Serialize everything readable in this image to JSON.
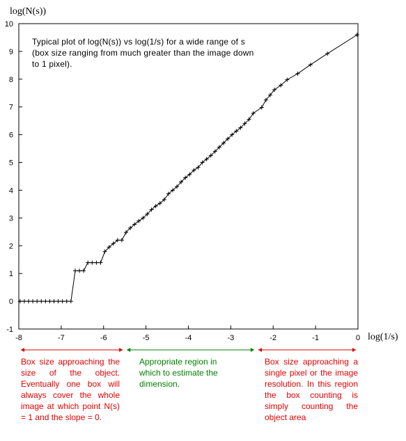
{
  "chart_data": {
    "type": "line",
    "title": "",
    "xlabel": "log(1/s)",
    "ylabel": "log(N(s))",
    "xlim": [
      -8,
      0
    ],
    "ylim": [
      -1,
      10
    ],
    "x_ticks": [
      "-8",
      "-7",
      "-6",
      "-5",
      "-4",
      "-3",
      "-2",
      "-1",
      "0"
    ],
    "y_ticks": [
      "-1",
      "0",
      "1",
      "2",
      "3",
      "4",
      "5",
      "6",
      "7",
      "8",
      "9",
      "10"
    ],
    "grid": false,
    "annotation": "Typical plot of log(N(s)) vs log(1/s) for a wide range of s (box size ranging from much greater than the image down to 1 pixel).",
    "series": [
      {
        "marker": "plus",
        "color": "#000000",
        "x": [
          -7.97,
          -7.87,
          -7.77,
          -7.67,
          -7.57,
          -7.47,
          -7.37,
          -7.27,
          -7.17,
          -7.07,
          -6.97,
          -6.87,
          -6.77,
          -6.67,
          -6.57,
          -6.47,
          -6.37,
          -6.27,
          -6.17,
          -6.07,
          -5.97,
          -5.87,
          -5.77,
          -5.67,
          -5.57,
          -5.47,
          -5.37,
          -5.27,
          -5.17,
          -5.07,
          -4.97,
          -4.87,
          -4.77,
          -4.67,
          -4.57,
          -4.47,
          -4.37,
          -4.27,
          -4.17,
          -4.07,
          -3.97,
          -3.87,
          -3.77,
          -3.67,
          -3.57,
          -3.47,
          -3.37,
          -3.27,
          -3.17,
          -3.07,
          -2.97,
          -2.87,
          -2.77,
          -2.67,
          -2.57,
          -2.47,
          -2.27,
          -2.17,
          -2.07,
          -1.97,
          -1.82,
          -1.67,
          -1.42,
          -1.12,
          -0.72,
          -0.02
        ],
        "y": [
          0,
          0,
          0,
          0,
          0,
          0,
          0,
          0,
          0,
          0,
          0,
          0,
          0,
          1.1,
          1.1,
          1.1,
          1.39,
          1.39,
          1.39,
          1.39,
          1.79,
          1.95,
          2.08,
          2.2,
          2.2,
          2.48,
          2.64,
          2.77,
          2.89,
          3.0,
          3.14,
          3.3,
          3.43,
          3.53,
          3.66,
          3.87,
          4.0,
          4.13,
          4.3,
          4.45,
          4.57,
          4.72,
          4.82,
          5.0,
          5.12,
          5.25,
          5.4,
          5.55,
          5.7,
          5.85,
          6.0,
          6.13,
          6.25,
          6.4,
          6.55,
          6.77,
          6.98,
          7.25,
          7.43,
          7.62,
          7.78,
          7.98,
          8.2,
          8.52,
          8.92,
          9.6
        ]
      }
    ]
  },
  "note_text": "Typical plot of log(N(s)) vs log(1/s) for a wide range of s (box size ranging from much greater than the image down to 1 pixel).",
  "regions": [
    {
      "text": "Box size approaching the size of the object. Eventually one box will always cover the whole image at which point N(s) = 1 and the slope = 0.",
      "color": "#e00000",
      "x_range": [
        -8,
        -5.5
      ]
    },
    {
      "text": "Appropriate region in which to estimate the dimension.",
      "color": "#008000",
      "x_range": [
        -5.5,
        -2.4
      ]
    },
    {
      "text": "Box size approaching a single pixel or the image resolution. In this region the box counting is simply counting the object area",
      "color": "#e00000",
      "x_range": [
        -2.4,
        0
      ]
    }
  ]
}
